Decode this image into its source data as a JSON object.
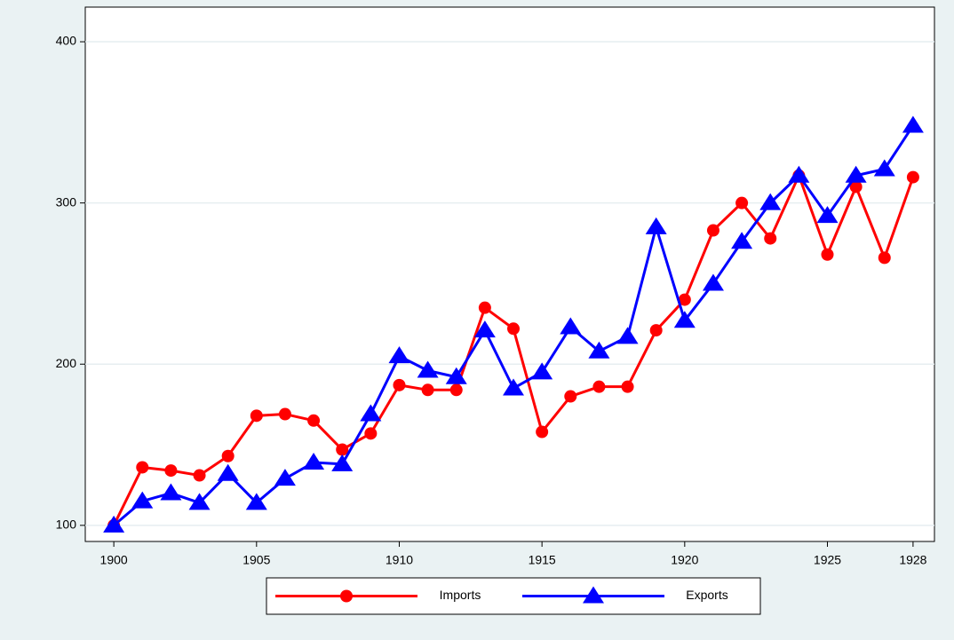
{
  "chart_data": {
    "type": "line",
    "x": [
      1900,
      1901,
      1902,
      1903,
      1904,
      1905,
      1906,
      1907,
      1908,
      1909,
      1910,
      1911,
      1912,
      1913,
      1914,
      1915,
      1916,
      1917,
      1918,
      1919,
      1920,
      1921,
      1922,
      1923,
      1924,
      1925,
      1926,
      1927,
      1928
    ],
    "series": [
      {
        "name": "Imports",
        "color": "#ff0000",
        "marker": "circle",
        "values": [
          100,
          136,
          134,
          131,
          143,
          168,
          169,
          165,
          147,
          157,
          187,
          184,
          184,
          235,
          222,
          158,
          180,
          186,
          186,
          221,
          240,
          283,
          300,
          278,
          317,
          268,
          310,
          266,
          316
        ]
      },
      {
        "name": "Exports",
        "color": "#0000ff",
        "marker": "triangle",
        "values": [
          100,
          115,
          120,
          114,
          132,
          114,
          129,
          139,
          138,
          169,
          205,
          196,
          192,
          221,
          185,
          195,
          223,
          208,
          217,
          285,
          227,
          250,
          276,
          300,
          317,
          292,
          317,
          321,
          348
        ]
      }
    ],
    "xlim": [
      1899,
      1928.75
    ],
    "xticks": [
      1900,
      1905,
      1910,
      1915,
      1920,
      1925,
      1928
    ],
    "ylim": [
      90,
      421.5
    ],
    "yticks": [
      100,
      200,
      300,
      400
    ],
    "grid": true,
    "legend": "bottom"
  }
}
